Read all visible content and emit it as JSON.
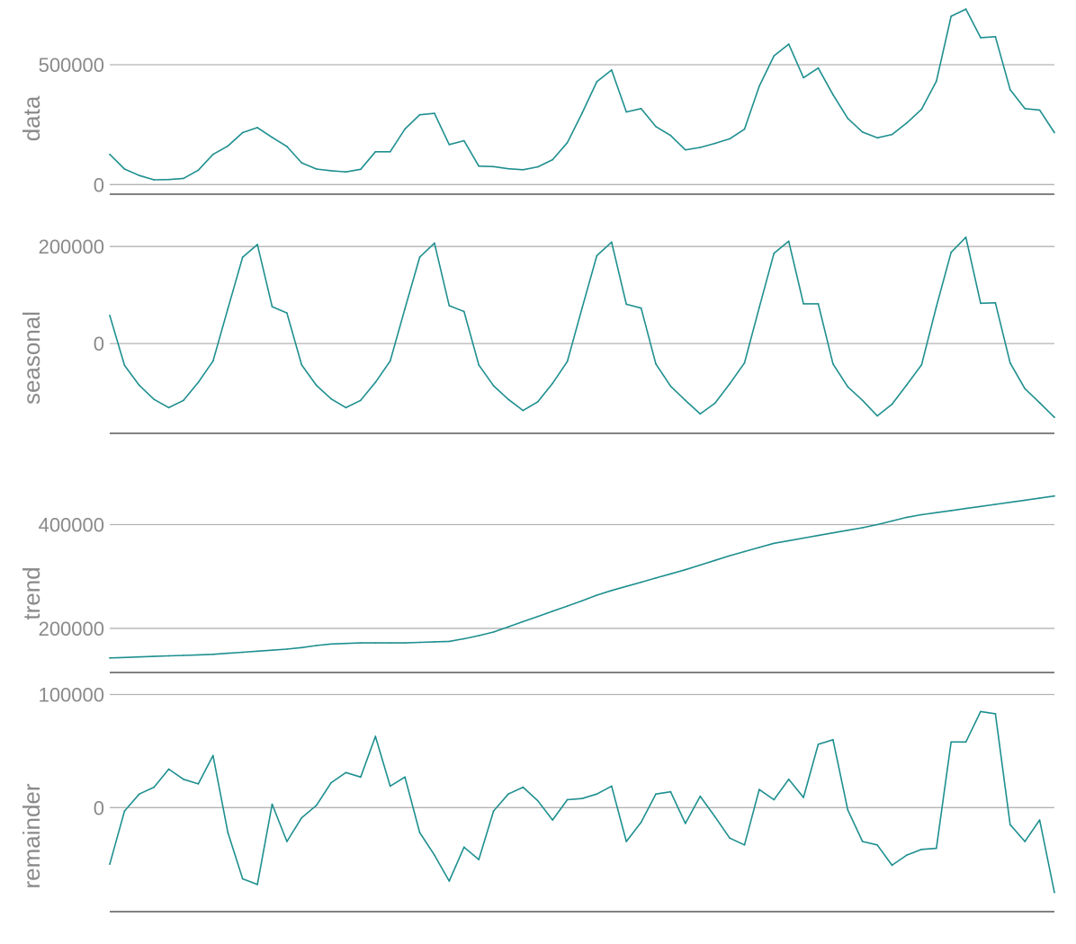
{
  "chart_data": [
    {
      "type": "line",
      "ylabel": "data",
      "yticks": [
        0,
        500000
      ],
      "ytick_labels": [
        "0",
        "500000"
      ],
      "ylim": [
        -40000,
        770000
      ],
      "series": [
        {
          "values": [
            126000,
            65000,
            38000,
            20000,
            21000,
            26000,
            60000,
            126000,
            161000,
            217000,
            238000,
            197000,
            159000,
            91000,
            65000,
            58000,
            53000,
            64000,
            137000,
            137000,
            232000,
            291000,
            297000,
            167000,
            183000,
            77000,
            75000,
            66000,
            62000,
            74000,
            104000,
            175000,
            298000,
            429000,
            478000,
            303000,
            317000,
            242000,
            205000,
            145000,
            155000,
            172000,
            191000,
            231000,
            410000,
            537000,
            586000,
            446000,
            486000,
            375000,
            276000,
            219000,
            195000,
            209000,
            257000,
            314000,
            431000,
            702000,
            732000,
            613000,
            617000,
            396000,
            317000,
            311000,
            217000
          ]
        }
      ],
      "color": "#1f8f8f"
    },
    {
      "type": "line",
      "ylabel": "seasonal",
      "yticks": [
        0,
        200000
      ],
      "ytick_labels": [
        "0",
        "200000"
      ],
      "ylim": [
        -185000,
        230000
      ],
      "series": [
        {
          "values": [
            58000,
            -45000,
            -86000,
            -115000,
            -132000,
            -117000,
            -80000,
            -36000,
            72000,
            178000,
            204000,
            76000,
            63000,
            -44000,
            -86000,
            -114000,
            -132000,
            -117000,
            -80000,
            -36000,
            72000,
            178000,
            207000,
            78000,
            66000,
            -44000,
            -87000,
            -115000,
            -138000,
            -120000,
            -82000,
            -37000,
            73000,
            181000,
            209000,
            81000,
            73000,
            -42000,
            -88000,
            -117000,
            -145000,
            -123000,
            -83000,
            -40000,
            74000,
            186000,
            211000,
            82000,
            82000,
            -42000,
            -89000,
            -117000,
            -149000,
            -125000,
            -85000,
            -44000,
            76000,
            188000,
            219000,
            83000,
            84000,
            -40000,
            -93000,
            -122000,
            -152000
          ]
        }
      ],
      "color": "#1f8f8f"
    },
    {
      "type": "line",
      "ylabel": "trend",
      "yticks": [
        200000,
        400000
      ],
      "ytick_labels": [
        "200000",
        "400000"
      ],
      "ylim": [
        115000,
        510000
      ],
      "series": [
        {
          "values": [
            143000,
            144000,
            145000,
            146000,
            147000,
            148000,
            149000,
            150000,
            152000,
            154000,
            156000,
            158000,
            160000,
            163000,
            167000,
            170000,
            171000,
            172000,
            172000,
            172000,
            172000,
            173000,
            174000,
            175000,
            180000,
            186000,
            193000,
            203000,
            213000,
            223000,
            233000,
            243000,
            253000,
            264000,
            273000,
            281000,
            289000,
            297000,
            305000,
            313000,
            322000,
            331000,
            340000,
            348000,
            356000,
            364000,
            369000,
            374000,
            379000,
            384000,
            389000,
            394000,
            400000,
            407000,
            414000,
            419000,
            423000,
            427000,
            431000,
            435000,
            439000,
            443000,
            447000,
            451000,
            455000
          ]
        }
      ],
      "color": "#1f8f8f"
    },
    {
      "type": "line",
      "ylabel": "remainder",
      "yticks": [
        0,
        100000
      ],
      "ytick_labels": [
        "0",
        "100000"
      ],
      "ylim": [
        -92000,
        102000
      ],
      "series": [
        {
          "values": [
            -50000,
            -3000,
            12000,
            18000,
            34000,
            25000,
            21000,
            46000,
            -22000,
            -63000,
            -68000,
            3000,
            -30000,
            -9000,
            2000,
            22000,
            31000,
            27000,
            63000,
            19000,
            27000,
            -22000,
            -42000,
            -65000,
            -35000,
            -46000,
            -3000,
            12000,
            18000,
            6000,
            -11000,
            7000,
            8000,
            12000,
            19000,
            -30000,
            -13000,
            12000,
            14000,
            -14000,
            10000,
            -8000,
            -27000,
            -33000,
            16000,
            7000,
            25000,
            9000,
            56000,
            60000,
            -2000,
            -30000,
            -33000,
            -51000,
            -42000,
            -37000,
            -36000,
            58000,
            58000,
            85000,
            83000,
            -15000,
            -30000,
            -11000,
            -75000
          ]
        }
      ],
      "color": "#1f8f8f"
    }
  ]
}
